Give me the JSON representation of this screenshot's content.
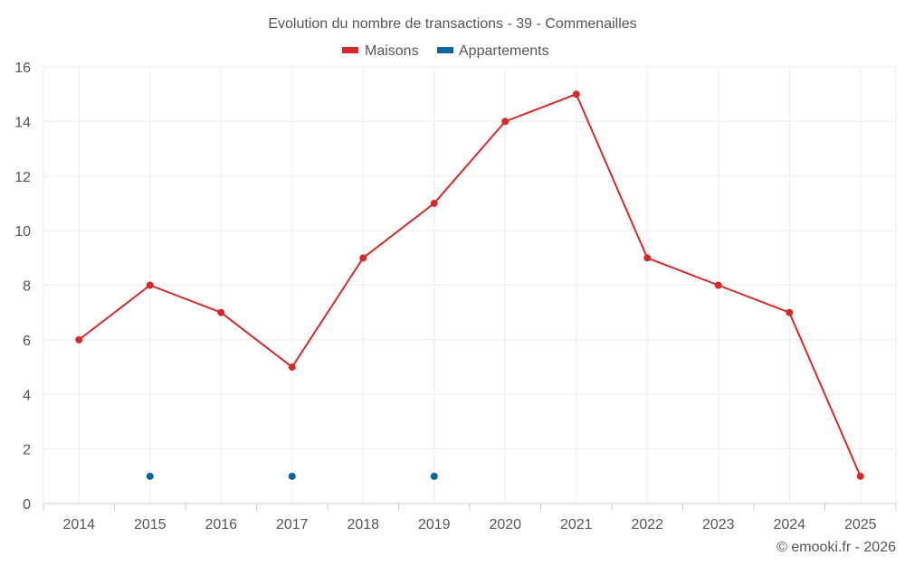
{
  "chart_data": {
    "type": "line",
    "title": "Evolution du nombre de transactions - 39 - Commenailles",
    "categories": [
      "2014",
      "2015",
      "2016",
      "2017",
      "2018",
      "2019",
      "2020",
      "2021",
      "2022",
      "2023",
      "2024",
      "2025"
    ],
    "series": [
      {
        "name": "Maisons",
        "color": "#d42a2a",
        "values": [
          6,
          8,
          7,
          5,
          9,
          11,
          14,
          15,
          9,
          8,
          7,
          1
        ]
      },
      {
        "name": "Appartements",
        "color": "#0a64a0",
        "values": [
          null,
          1,
          null,
          1,
          null,
          1,
          null,
          null,
          null,
          null,
          null,
          null
        ]
      }
    ],
    "ylim": [
      0,
      16
    ],
    "yticks": [
      0,
      2,
      4,
      6,
      8,
      10,
      12,
      14,
      16
    ],
    "grid": true,
    "legend": "top-center",
    "xlabel": "",
    "ylabel": ""
  },
  "credit": "© emooki.fr - 2026"
}
